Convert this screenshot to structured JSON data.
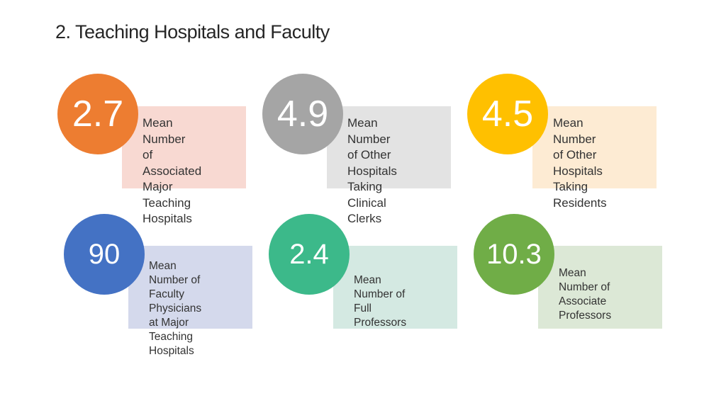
{
  "title": "2. Teaching Hospitals and Faculty",
  "cards": [
    {
      "value": "2.7",
      "label": "Mean Number\nof Associated\nMajor Teaching\nHospitals",
      "circle_color": "#ED7D31",
      "box_color": "#F8D9D2"
    },
    {
      "value": "4.9",
      "label": "Mean Number\nof Other\nHospitals Taking\nClinical Clerks",
      "circle_color": "#A5A5A5",
      "box_color": "#E3E3E3"
    },
    {
      "value": "4.5",
      "label": "Mean Number\nof Other\nHospitals Taking\nResidents",
      "circle_color": "#FFC000",
      "box_color": "#FDEBD3"
    },
    {
      "value": "90",
      "label": "Mean Number of\nFaculty Physicians\nat Major Teaching\nHospitals",
      "circle_color": "#4472C4",
      "box_color": "#D4D9EC"
    },
    {
      "value": "2.4",
      "label": "Mean Number of\nFull Professors",
      "circle_color": "#3CB98A",
      "box_color": "#D4E9E2"
    },
    {
      "value": "10.3",
      "label": "Mean Number of\nAssociate\nProfessors",
      "circle_color": "#70AD47",
      "box_color": "#DCE8D6"
    }
  ]
}
